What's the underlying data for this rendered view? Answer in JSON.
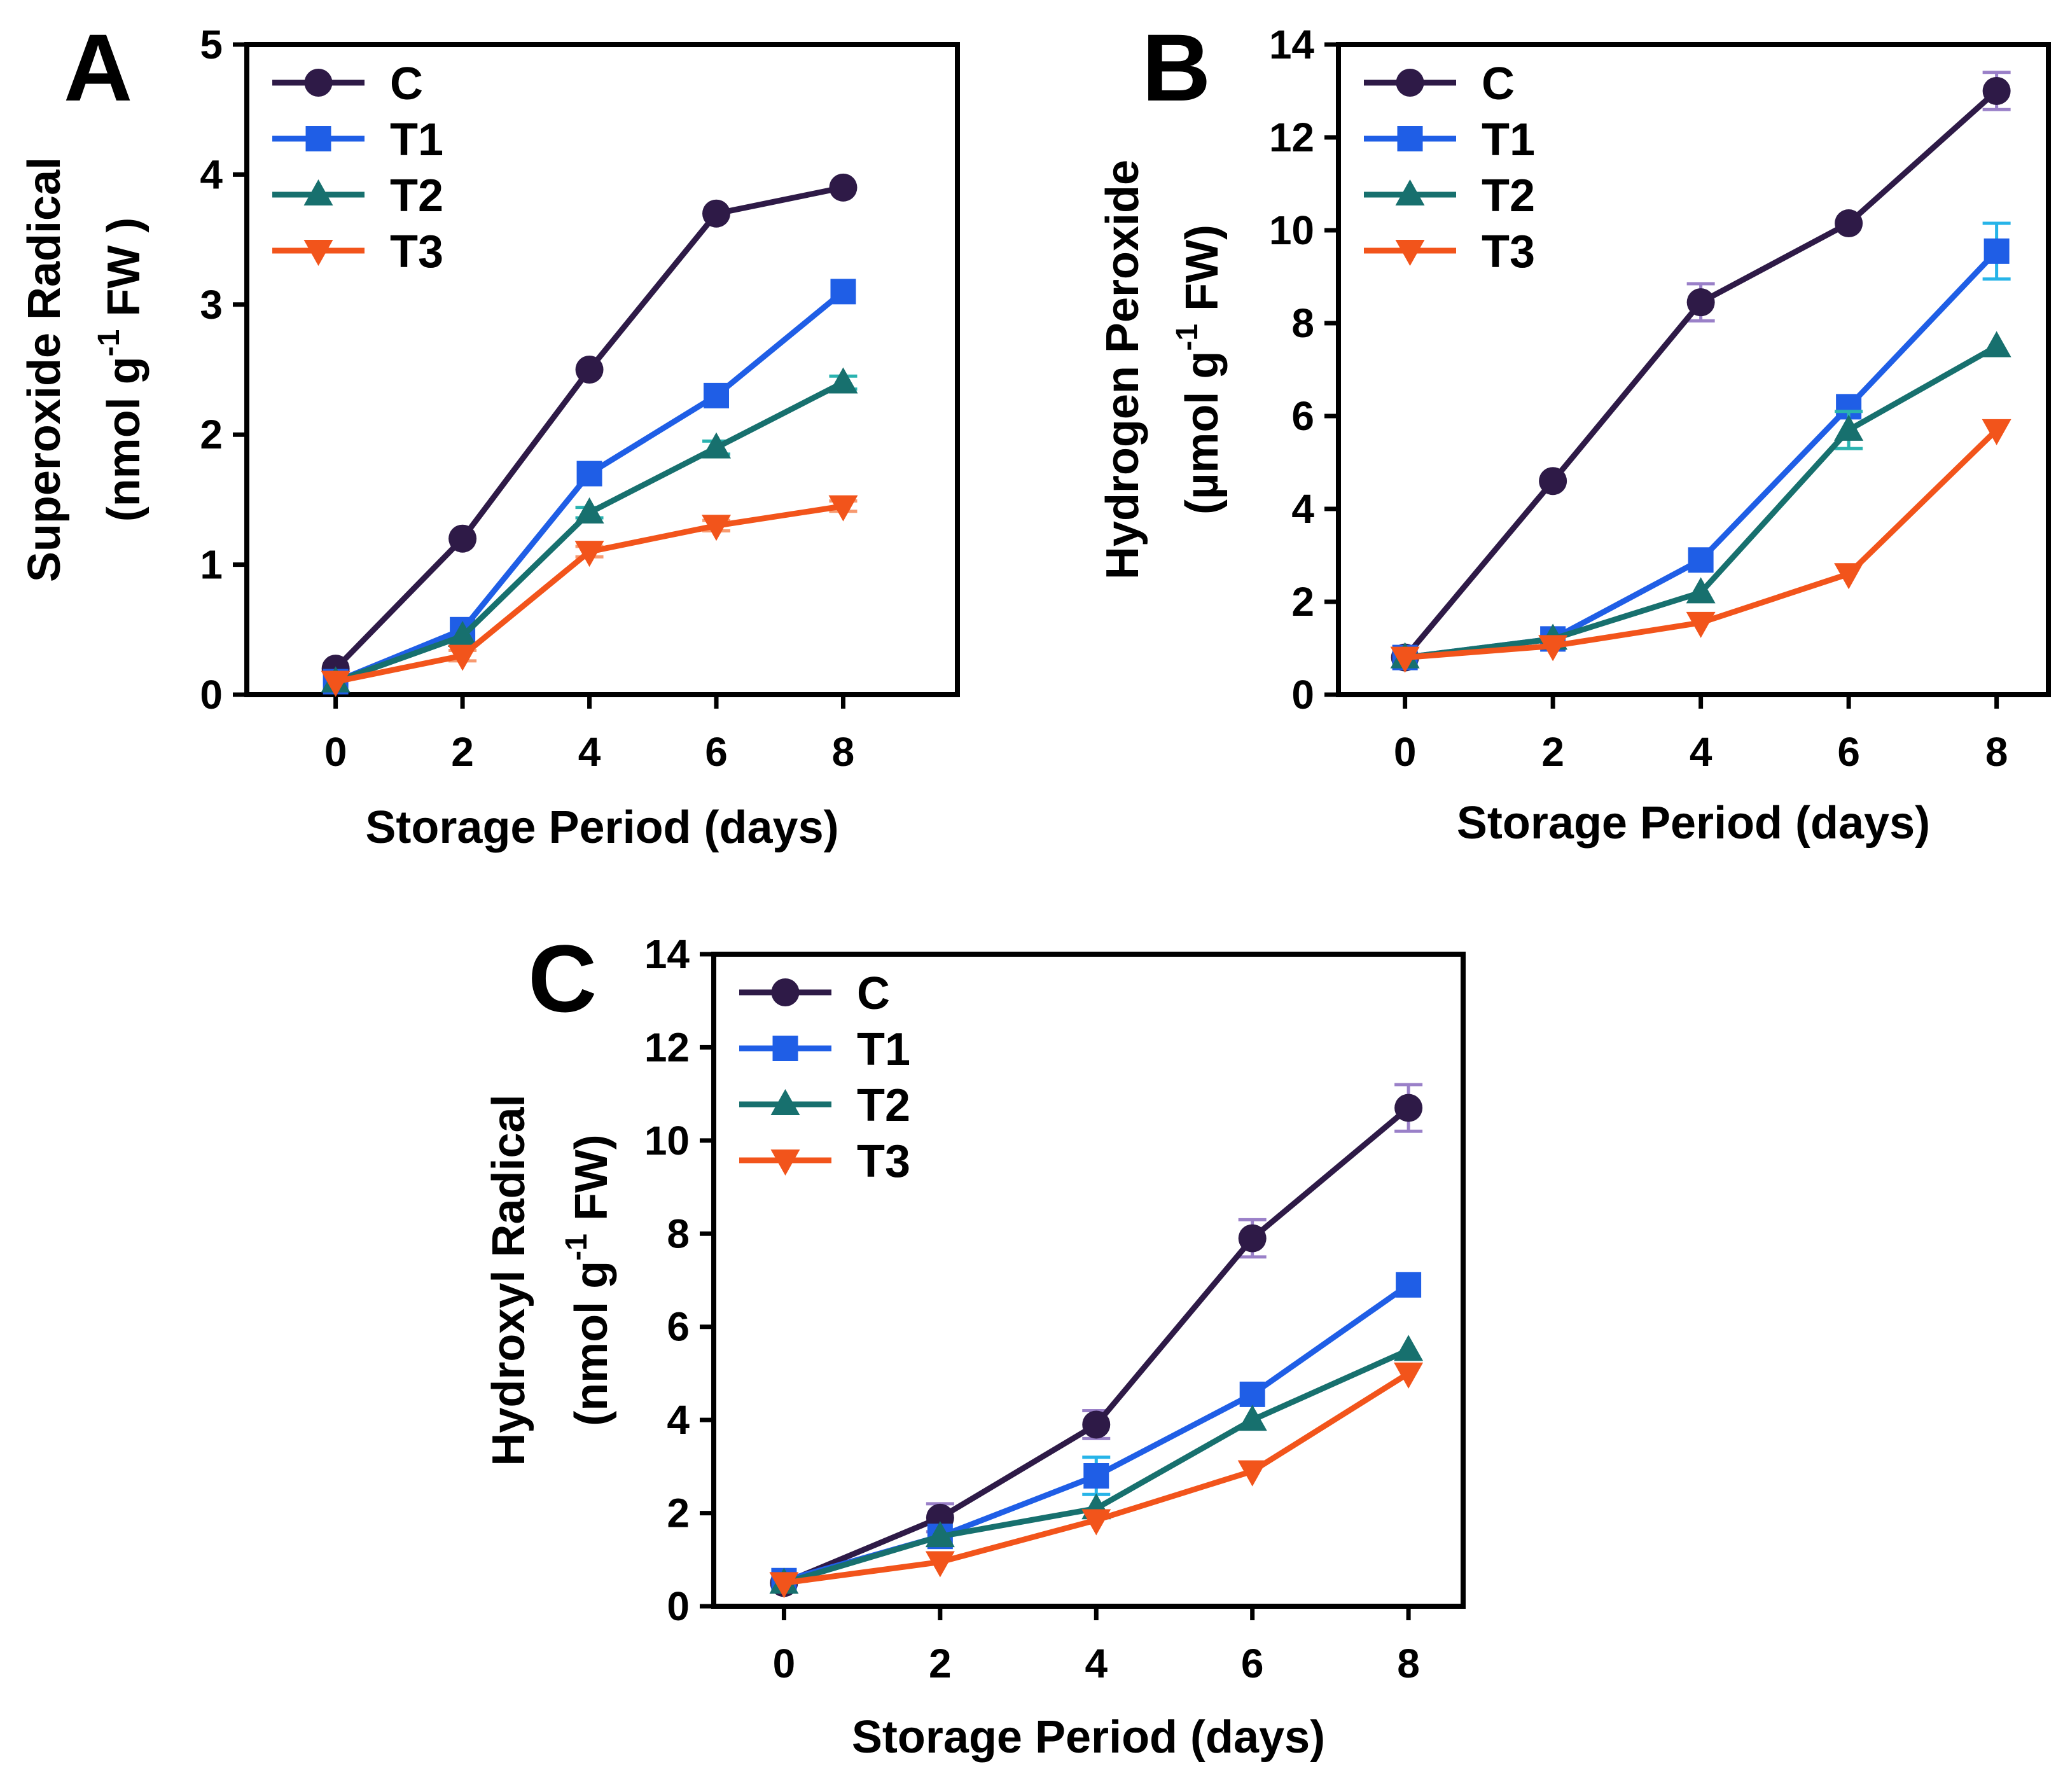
{
  "figure": {
    "panels": [
      "A",
      "B",
      "C"
    ]
  },
  "colors": {
    "C": "#2e1a47",
    "T1": "#1f5ee6",
    "T2": "#17706e",
    "T3": "#f2541b",
    "err_C": "#9a80c8",
    "err_T1": "#27b4e8",
    "err_T2": "#2ab3b0",
    "err_T3": "#f79a70"
  },
  "chart_data": [
    {
      "panel": "A",
      "type": "line",
      "title": "",
      "xlabel": "Storage Period (days)",
      "ylabel_line1": "Superoxide Radical",
      "ylabel_line2_prefix": "(nmol g",
      "ylabel_superscript": "-1",
      "ylabel_line2_suffix": " FW )",
      "x": [
        0,
        2,
        4,
        6,
        8
      ],
      "xlim": [
        -1.4,
        9.8
      ],
      "ylim": [
        0,
        5
      ],
      "yticks": [
        0,
        1,
        2,
        3,
        4,
        5
      ],
      "xticks": [
        0,
        2,
        4,
        6,
        8
      ],
      "legend_position": "top-left",
      "series": [
        {
          "name": "C",
          "marker": "circle",
          "values": [
            0.2,
            1.2,
            2.5,
            3.7,
            3.9
          ],
          "errors": [
            0,
            0,
            0,
            0,
            0
          ]
        },
        {
          "name": "T1",
          "marker": "square",
          "values": [
            0.1,
            0.5,
            1.7,
            2.3,
            3.1
          ],
          "errors": [
            0,
            0,
            0,
            0,
            0
          ]
        },
        {
          "name": "T2",
          "marker": "triangle-up",
          "values": [
            0.1,
            0.45,
            1.4,
            1.9,
            2.4
          ],
          "errors": [
            0,
            0,
            0.04,
            0.05,
            0.05
          ]
        },
        {
          "name": "T3",
          "marker": "triangle-down",
          "values": [
            0.1,
            0.3,
            1.1,
            1.3,
            1.45
          ],
          "errors": [
            0,
            0.04,
            0.04,
            0.04,
            0.04
          ]
        }
      ]
    },
    {
      "panel": "B",
      "type": "line",
      "title": "",
      "xlabel": "Storage Period (days)",
      "ylabel_line1": "Hydrogen Peroxide",
      "ylabel_line2_prefix": "(µmol g",
      "ylabel_superscript": "-1",
      "ylabel_line2_suffix": " FW)",
      "x": [
        0,
        2,
        4,
        6,
        8
      ],
      "xlim": [
        -0.9,
        8.7
      ],
      "ylim": [
        0,
        14
      ],
      "yticks": [
        0,
        2,
        4,
        6,
        8,
        10,
        12,
        14
      ],
      "xticks": [
        0,
        2,
        4,
        6,
        8
      ],
      "legend_position": "top-left",
      "series": [
        {
          "name": "C",
          "marker": "circle",
          "values": [
            0.8,
            4.6,
            8.45,
            10.15,
            13.0
          ],
          "errors": [
            0,
            0,
            0.4,
            0,
            0.4
          ]
        },
        {
          "name": "T1",
          "marker": "square",
          "values": [
            0.8,
            1.2,
            2.9,
            6.2,
            9.55
          ],
          "errors": [
            0,
            0,
            0,
            0,
            0.6
          ]
        },
        {
          "name": "T2",
          "marker": "triangle-up",
          "values": [
            0.8,
            1.2,
            2.2,
            5.7,
            7.5
          ],
          "errors": [
            0,
            0,
            0,
            0.4,
            0
          ]
        },
        {
          "name": "T3",
          "marker": "triangle-down",
          "values": [
            0.8,
            1.05,
            1.55,
            2.6,
            5.7
          ],
          "errors": [
            0,
            0,
            0,
            0,
            0
          ]
        }
      ]
    },
    {
      "panel": "C",
      "type": "line",
      "title": "",
      "xlabel": "Storage Period (days)",
      "ylabel_line1": "Hydroxyl Radical",
      "ylabel_line2_prefix": "(nmol g",
      "ylabel_superscript": "-1",
      "ylabel_line2_suffix": " FW)",
      "x": [
        0,
        2,
        4,
        6,
        8
      ],
      "xlim": [
        -0.9,
        8.7
      ],
      "ylim": [
        0,
        14
      ],
      "yticks": [
        0,
        2,
        4,
        6,
        8,
        10,
        12,
        14
      ],
      "xticks": [
        0,
        2,
        4,
        6,
        8
      ],
      "legend_position": "top-left",
      "series": [
        {
          "name": "C",
          "marker": "circle",
          "values": [
            0.5,
            1.9,
            3.9,
            7.9,
            10.7
          ],
          "errors": [
            0,
            0.3,
            0.3,
            0.4,
            0.5
          ]
        },
        {
          "name": "T1",
          "marker": "square",
          "values": [
            0.55,
            1.5,
            2.8,
            4.55,
            6.9
          ],
          "errors": [
            0,
            0,
            0.4,
            0,
            0
          ]
        },
        {
          "name": "T2",
          "marker": "triangle-up",
          "values": [
            0.5,
            1.5,
            2.1,
            4.0,
            5.5
          ],
          "errors": [
            0,
            0,
            0,
            0,
            0
          ]
        },
        {
          "name": "T3",
          "marker": "triangle-down",
          "values": [
            0.5,
            0.95,
            1.85,
            2.9,
            5.0
          ],
          "errors": [
            0,
            0,
            0,
            0,
            0
          ]
        }
      ]
    }
  ]
}
